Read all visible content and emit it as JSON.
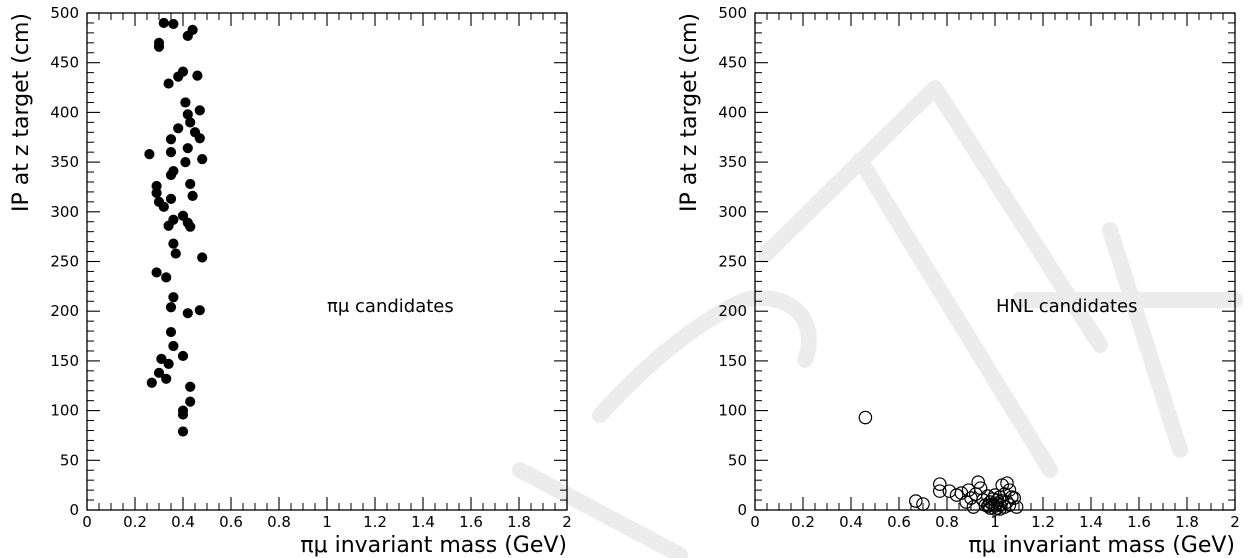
{
  "watermark_text": "DRAFT",
  "chart_data": [
    {
      "type": "scatter",
      "title": "",
      "xlabel": "πμ invariant mass (GeV)",
      "ylabel": "IP at z target (cm)",
      "xlim": [
        0,
        2
      ],
      "ylim": [
        0,
        500
      ],
      "xticks": [
        0,
        0.2,
        0.4,
        0.6,
        0.8,
        1,
        1.2,
        1.4,
        1.6,
        1.8,
        2
      ],
      "xtick_labels": [
        "0",
        "0.2",
        "0.4",
        "0.6",
        "0.8",
        "1",
        "1.2",
        "1.4",
        "1.6",
        "1.8",
        "2"
      ],
      "yticks": [
        0,
        50,
        100,
        150,
        200,
        250,
        300,
        350,
        400,
        450,
        500
      ],
      "ytick_labels": [
        "0",
        "50",
        "100",
        "150",
        "200",
        "250",
        "300",
        "350",
        "400",
        "450",
        "500"
      ],
      "annotation": "πμ candidates",
      "marker": "filled-circle",
      "grid": false,
      "points": [
        [
          0.32,
          490
        ],
        [
          0.36,
          489
        ],
        [
          0.44,
          483
        ],
        [
          0.42,
          477
        ],
        [
          0.3,
          470
        ],
        [
          0.3,
          466
        ],
        [
          0.4,
          441
        ],
        [
          0.38,
          436
        ],
        [
          0.46,
          437
        ],
        [
          0.34,
          429
        ],
        [
          0.41,
          410
        ],
        [
          0.42,
          398
        ],
        [
          0.47,
          402
        ],
        [
          0.43,
          390
        ],
        [
          0.38,
          384
        ],
        [
          0.45,
          380
        ],
        [
          0.47,
          374
        ],
        [
          0.35,
          373
        ],
        [
          0.42,
          364
        ],
        [
          0.35,
          360
        ],
        [
          0.26,
          358
        ],
        [
          0.48,
          353
        ],
        [
          0.41,
          350
        ],
        [
          0.36,
          341
        ],
        [
          0.35,
          337
        ],
        [
          0.43,
          328
        ],
        [
          0.29,
          326
        ],
        [
          0.29,
          319
        ],
        [
          0.44,
          316
        ],
        [
          0.35,
          313
        ],
        [
          0.3,
          310
        ],
        [
          0.32,
          305
        ],
        [
          0.4,
          296
        ],
        [
          0.36,
          292
        ],
        [
          0.42,
          289
        ],
        [
          0.34,
          286
        ],
        [
          0.43,
          285
        ],
        [
          0.36,
          268
        ],
        [
          0.37,
          258
        ],
        [
          0.48,
          254
        ],
        [
          0.29,
          239
        ],
        [
          0.33,
          234
        ],
        [
          0.36,
          214
        ],
        [
          0.35,
          204
        ],
        [
          0.47,
          201
        ],
        [
          0.42,
          198
        ],
        [
          0.35,
          179
        ],
        [
          0.36,
          165
        ],
        [
          0.4,
          155
        ],
        [
          0.31,
          152
        ],
        [
          0.34,
          147
        ],
        [
          0.3,
          138
        ],
        [
          0.33,
          132
        ],
        [
          0.27,
          128
        ],
        [
          0.43,
          124
        ],
        [
          0.43,
          109
        ],
        [
          0.4,
          100
        ],
        [
          0.4,
          96
        ],
        [
          0.4,
          79
        ]
      ]
    },
    {
      "type": "scatter",
      "title": "",
      "xlabel": "πμ invariant mass (GeV)",
      "ylabel": "IP at z target (cm)",
      "xlim": [
        0,
        2
      ],
      "ylim": [
        0,
        500
      ],
      "xticks": [
        0,
        0.2,
        0.4,
        0.6,
        0.8,
        1,
        1.2,
        1.4,
        1.6,
        1.8,
        2
      ],
      "xtick_labels": [
        "0",
        "0.2",
        "0.4",
        "0.6",
        "0.8",
        "1",
        "1.2",
        "1.4",
        "1.6",
        "1.8",
        "2"
      ],
      "yticks": [
        0,
        50,
        100,
        150,
        200,
        250,
        300,
        350,
        400,
        450,
        500
      ],
      "ytick_labels": [
        "0",
        "50",
        "100",
        "150",
        "200",
        "250",
        "300",
        "350",
        "400",
        "450",
        "500"
      ],
      "annotation": "HNL candidates",
      "marker": "open-circle",
      "grid": false,
      "points": [
        [
          0.46,
          93
        ],
        [
          0.67,
          9
        ],
        [
          0.7,
          6
        ],
        [
          0.77,
          26
        ],
        [
          0.77,
          19
        ],
        [
          0.81,
          19
        ],
        [
          0.84,
          15
        ],
        [
          0.86,
          17
        ],
        [
          0.88,
          8
        ],
        [
          0.89,
          20
        ],
        [
          0.9,
          12
        ],
        [
          0.91,
          3
        ],
        [
          0.92,
          16
        ],
        [
          0.93,
          28
        ],
        [
          0.94,
          22
        ],
        [
          0.95,
          10
        ],
        [
          0.96,
          5
        ],
        [
          0.97,
          14
        ],
        [
          0.98,
          2
        ],
        [
          0.98,
          8
        ],
        [
          0.99,
          11
        ],
        [
          1.0,
          4
        ],
        [
          1.0,
          1
        ],
        [
          1.01,
          7
        ],
        [
          1.01,
          2
        ],
        [
          1.02,
          13
        ],
        [
          1.02,
          5
        ],
        [
          1.03,
          25
        ],
        [
          1.03,
          9
        ],
        [
          1.04,
          3
        ],
        [
          1.04,
          16
        ],
        [
          1.05,
          27
        ],
        [
          1.05,
          8
        ],
        [
          1.06,
          20
        ],
        [
          1.06,
          5
        ],
        [
          1.07,
          13
        ],
        [
          1.08,
          12
        ],
        [
          1.09,
          3
        ],
        [
          1.01,
          10
        ],
        [
          0.99,
          6
        ],
        [
          1.0,
          15
        ],
        [
          1.02,
          1
        ],
        [
          0.97,
          4
        ]
      ]
    }
  ]
}
